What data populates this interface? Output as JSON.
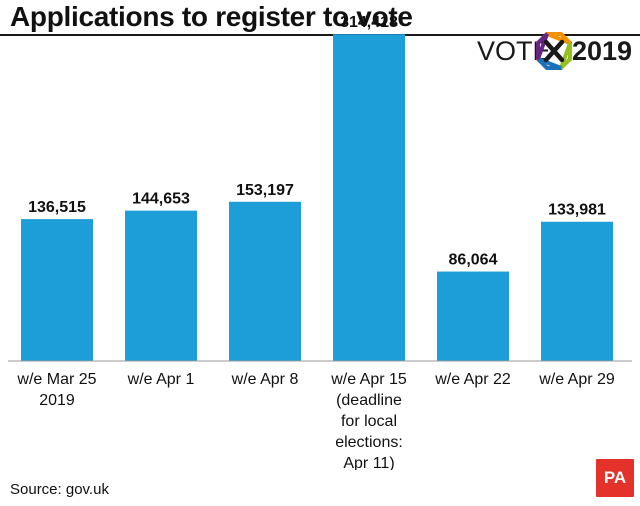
{
  "title": "Applications to register to vote",
  "logo": {
    "prefix": "VOTE",
    "year": "2019",
    "icon": "ballot-x-icon"
  },
  "source": "Source: gov.uk",
  "publisher": "PA",
  "colors": {
    "bar": "#1D9ED9",
    "baseline": "#9a9a9a",
    "publisher": "#e4322b"
  },
  "chart_data": {
    "type": "bar",
    "title": "Applications to register to vote",
    "xlabel": "",
    "ylabel": "",
    "ylim": [
      0,
      330000
    ],
    "grid": false,
    "categories": [
      [
        "w/e Mar 25",
        "2019"
      ],
      [
        "w/e Apr 1"
      ],
      [
        "w/e Apr 8"
      ],
      [
        "w/e Apr 15",
        "(deadline",
        "for local",
        "elections:",
        "Apr 11)"
      ],
      [
        "w/e Apr 22"
      ],
      [
        "w/e Apr 29"
      ]
    ],
    "values": [
      136515,
      144653,
      153197,
      314418,
      86064,
      133981
    ],
    "value_labels": [
      "136,515",
      "144,653",
      "153,197",
      "314,418",
      "86,064",
      "133,981"
    ]
  }
}
